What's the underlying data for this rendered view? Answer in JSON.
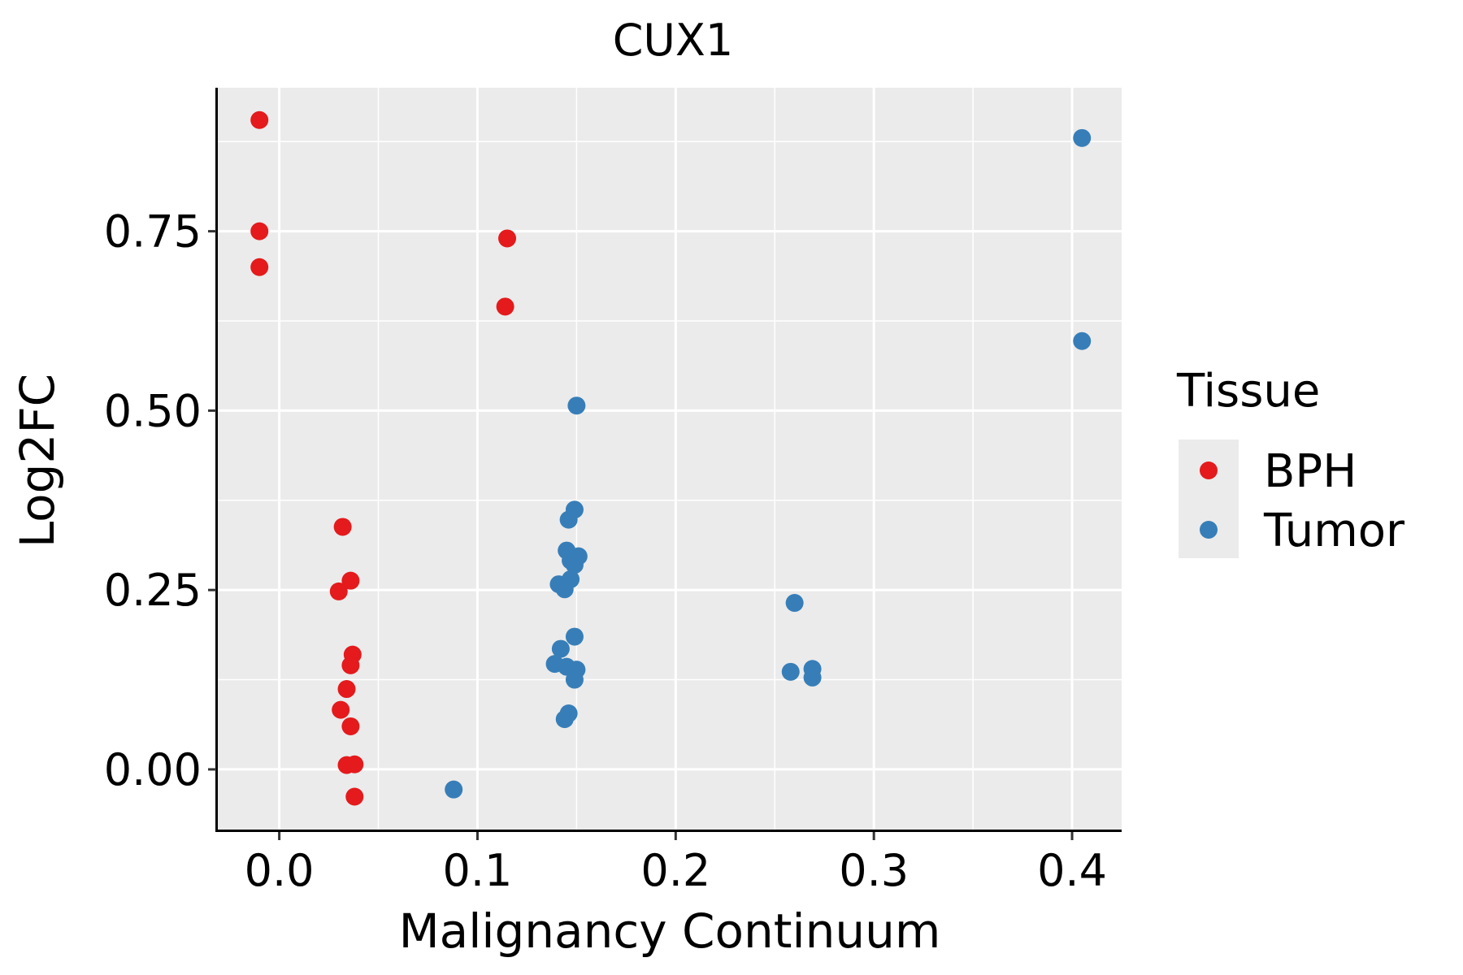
{
  "chart_data": {
    "type": "scatter",
    "title": "CUX1",
    "xlabel": "Malignancy Continuum",
    "ylabel": "Log2FC",
    "xlim": [
      -0.031,
      0.425
    ],
    "ylim": [
      -0.085,
      0.95
    ],
    "x_ticks": [
      0.0,
      0.1,
      0.2,
      0.3,
      0.4
    ],
    "x_tick_labels": [
      "0.0",
      "0.1",
      "0.2",
      "0.3",
      "0.4"
    ],
    "y_ticks": [
      0.0,
      0.25,
      0.5,
      0.75
    ],
    "y_tick_labels": [
      "0.00",
      "0.25",
      "0.50",
      "0.75"
    ],
    "x_minor": [
      0.05,
      0.15,
      0.25,
      0.35
    ],
    "y_minor": [
      0.125,
      0.375,
      0.625,
      0.875
    ],
    "grid": true,
    "legend": {
      "title": "Tissue",
      "position": "right"
    },
    "series": [
      {
        "name": "BPH",
        "color": "#E41A1C",
        "points": [
          [
            -0.01,
            0.905
          ],
          [
            -0.01,
            0.75
          ],
          [
            -0.01,
            0.7
          ],
          [
            0.115,
            0.74
          ],
          [
            0.114,
            0.645
          ],
          [
            0.032,
            0.338
          ],
          [
            0.036,
            0.263
          ],
          [
            0.03,
            0.248
          ],
          [
            0.037,
            0.16
          ],
          [
            0.036,
            0.145
          ],
          [
            0.034,
            0.112
          ],
          [
            0.031,
            0.083
          ],
          [
            0.036,
            0.06
          ],
          [
            0.034,
            0.006
          ],
          [
            0.038,
            0.007
          ],
          [
            0.038,
            -0.038
          ]
        ]
      },
      {
        "name": "Tumor",
        "color": "#377EB8",
        "points": [
          [
            0.405,
            0.88
          ],
          [
            0.405,
            0.597
          ],
          [
            0.15,
            0.507
          ],
          [
            0.149,
            0.362
          ],
          [
            0.146,
            0.348
          ],
          [
            0.145,
            0.305
          ],
          [
            0.151,
            0.297
          ],
          [
            0.147,
            0.291
          ],
          [
            0.149,
            0.285
          ],
          [
            0.147,
            0.265
          ],
          [
            0.141,
            0.258
          ],
          [
            0.144,
            0.251
          ],
          [
            0.26,
            0.232
          ],
          [
            0.149,
            0.185
          ],
          [
            0.142,
            0.168
          ],
          [
            0.139,
            0.147
          ],
          [
            0.145,
            0.143
          ],
          [
            0.15,
            0.139
          ],
          [
            0.149,
            0.125
          ],
          [
            0.258,
            0.136
          ],
          [
            0.269,
            0.14
          ],
          [
            0.269,
            0.128
          ],
          [
            0.146,
            0.078
          ],
          [
            0.144,
            0.07
          ],
          [
            0.088,
            -0.028
          ]
        ]
      }
    ]
  }
}
